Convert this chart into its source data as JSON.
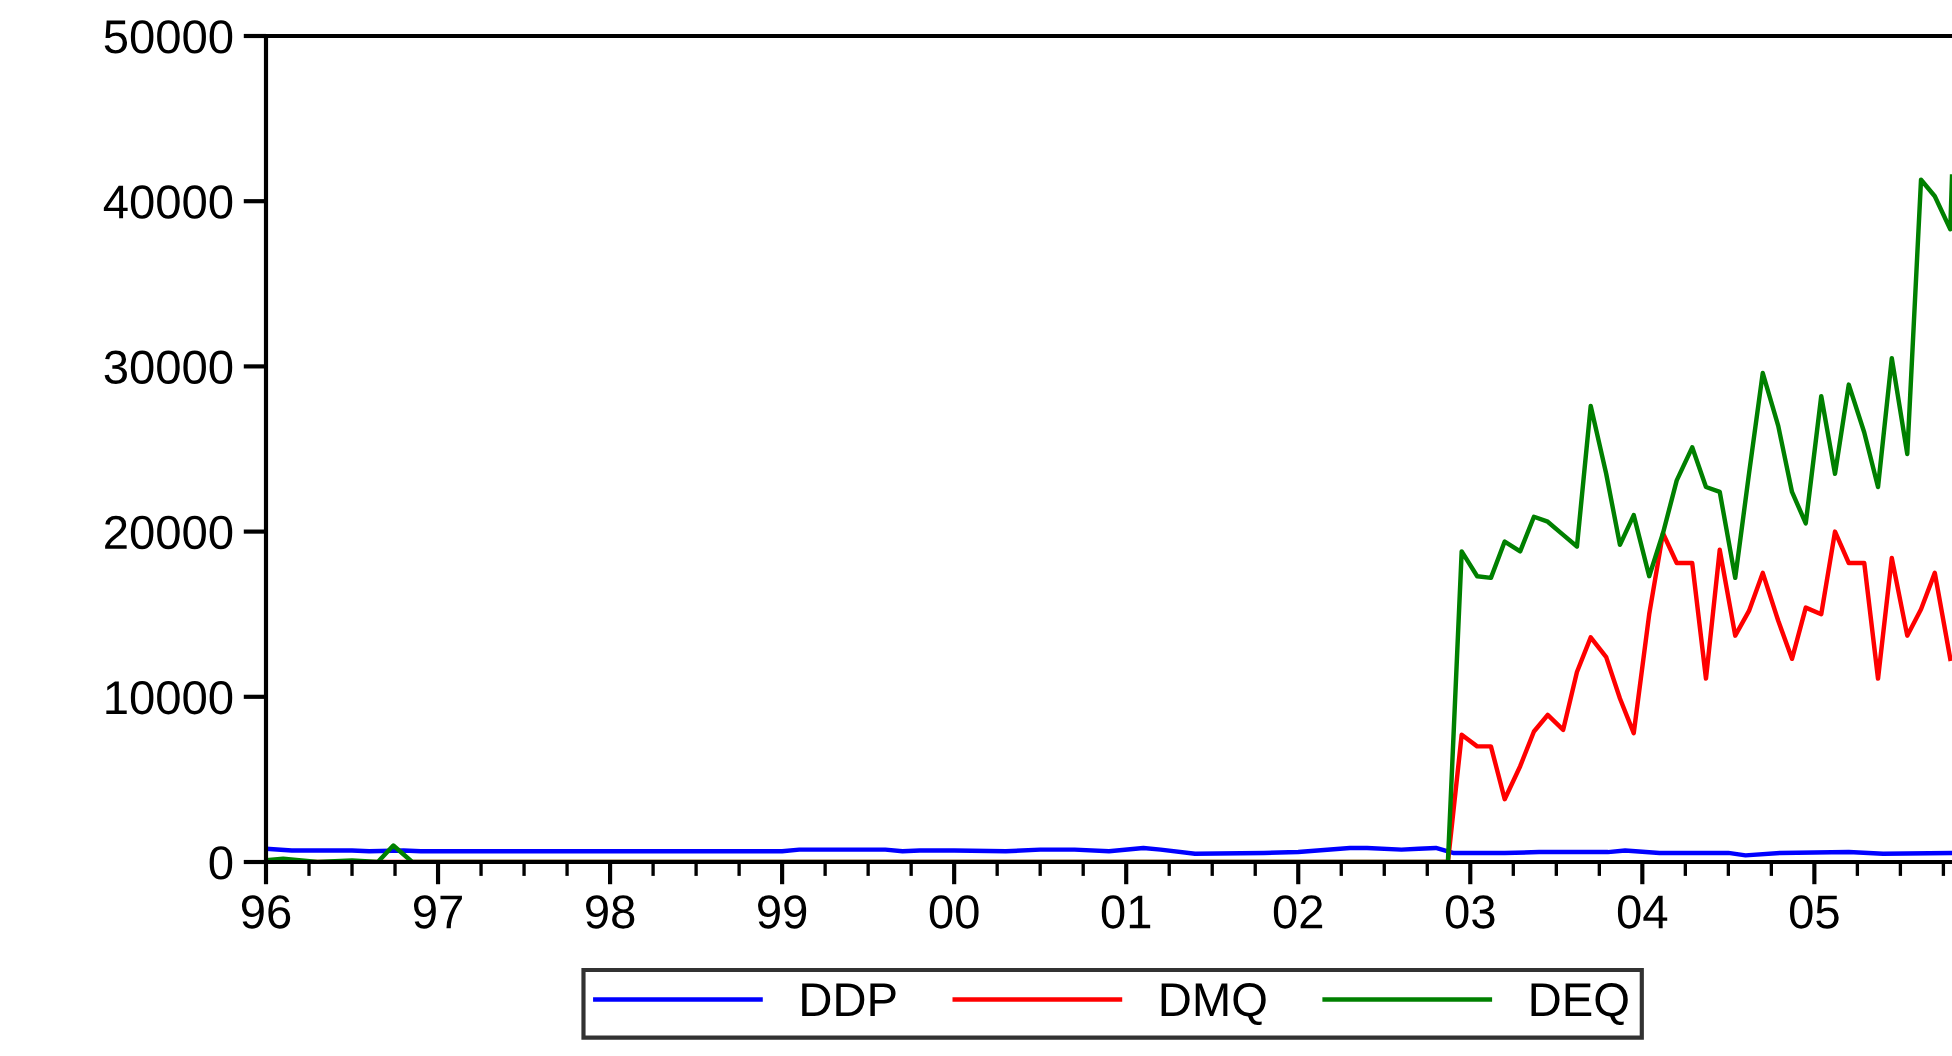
{
  "chart_data": {
    "type": "line",
    "xlim": [
      1996.0,
      2005.8
    ],
    "ylim": [
      0,
      50000
    ],
    "yticks": [
      0,
      10000,
      20000,
      30000,
      40000,
      50000
    ],
    "xticks": [
      {
        "value": 1996,
        "label": "96"
      },
      {
        "value": 1996.25,
        "label": null
      },
      {
        "value": 1996.5,
        "label": null
      },
      {
        "value": 1996.75,
        "label": null
      },
      {
        "value": 1997,
        "label": "97"
      },
      {
        "value": 1997.25,
        "label": null
      },
      {
        "value": 1997.5,
        "label": null
      },
      {
        "value": 1997.75,
        "label": null
      },
      {
        "value": 1998,
        "label": "98"
      },
      {
        "value": 1998.25,
        "label": null
      },
      {
        "value": 1998.5,
        "label": null
      },
      {
        "value": 1998.75,
        "label": null
      },
      {
        "value": 1999,
        "label": "99"
      },
      {
        "value": 1999.25,
        "label": null
      },
      {
        "value": 1999.5,
        "label": null
      },
      {
        "value": 1999.75,
        "label": null
      },
      {
        "value": 2000,
        "label": "00"
      },
      {
        "value": 2000.25,
        "label": null
      },
      {
        "value": 2000.5,
        "label": null
      },
      {
        "value": 2000.75,
        "label": null
      },
      {
        "value": 2001,
        "label": "01"
      },
      {
        "value": 2001.25,
        "label": null
      },
      {
        "value": 2001.5,
        "label": null
      },
      {
        "value": 2001.75,
        "label": null
      },
      {
        "value": 2002,
        "label": "02"
      },
      {
        "value": 2002.25,
        "label": null
      },
      {
        "value": 2002.5,
        "label": null
      },
      {
        "value": 2002.75,
        "label": null
      },
      {
        "value": 2003,
        "label": "03"
      },
      {
        "value": 2003.25,
        "label": null
      },
      {
        "value": 2003.5,
        "label": null
      },
      {
        "value": 2003.75,
        "label": null
      },
      {
        "value": 2004,
        "label": "04"
      },
      {
        "value": 2004.25,
        "label": null
      },
      {
        "value": 2004.5,
        "label": null
      },
      {
        "value": 2004.75,
        "label": null
      },
      {
        "value": 2005,
        "label": "05"
      },
      {
        "value": 2005.25,
        "label": null
      },
      {
        "value": 2005.5,
        "label": null
      },
      {
        "value": 2005.75,
        "label": null
      }
    ],
    "legend": "bottom",
    "grid": false,
    "marker": "none",
    "line_style": "solid",
    "series": [
      {
        "name": "DDP",
        "color": "#0000ff",
        "x": [
          1996.0,
          1996.15,
          1996.5,
          1996.6,
          1996.8,
          1996.9,
          1997.0,
          1999.0,
          1999.1,
          1999.6,
          1999.7,
          1999.8,
          2000.0,
          2000.3,
          2000.5,
          2000.7,
          2000.9,
          2001.1,
          2001.2,
          2001.4,
          2001.8,
          2002.0,
          2002.3,
          2002.4,
          2002.6,
          2002.7,
          2002.8,
          2002.9,
          2003.2,
          2003.4,
          2003.8,
          2003.9,
          2004.1,
          2004.5,
          2004.6,
          2004.8,
          2005.2,
          2005.4,
          2005.8
        ],
        "values": [
          800,
          700,
          700,
          650,
          700,
          650,
          650,
          650,
          750,
          750,
          650,
          700,
          700,
          650,
          750,
          750,
          650,
          850,
          750,
          500,
          550,
          600,
          850,
          850,
          750,
          800,
          850,
          550,
          550,
          600,
          600,
          700,
          550,
          550,
          400,
          550,
          600,
          500,
          550
        ]
      },
      {
        "name": "DMQ",
        "color": "#ff0000",
        "x": [
          1996.0,
          2002.87,
          2002.95,
          2003.04,
          2003.12,
          2003.2,
          2003.29,
          2003.37,
          2003.45,
          2003.54,
          2003.62,
          2003.7,
          2003.79,
          2003.87,
          2003.95,
          2004.04,
          2004.12,
          2004.2,
          2004.29,
          2004.37,
          2004.45,
          2004.54,
          2004.62,
          2004.7,
          2004.79,
          2004.87,
          2004.95,
          2005.04,
          2005.12,
          2005.2,
          2005.29,
          2005.37,
          2005.45,
          2005.54,
          2005.62,
          2005.7,
          2005.79
        ],
        "values": [
          0,
          0,
          7700,
          7000,
          7000,
          3800,
          5800,
          7900,
          8900,
          8000,
          11500,
          13600,
          12400,
          9900,
          7800,
          15000,
          19900,
          18100,
          18100,
          11100,
          18900,
          13700,
          15200,
          17500,
          14600,
          12300,
          15400,
          15000,
          20000,
          18100,
          18100,
          11100,
          18400,
          13700,
          15300,
          17500,
          12300
        ]
      },
      {
        "name": "DEQ",
        "color": "#008000",
        "x": [
          1996.0,
          1996.1,
          1996.3,
          1996.5,
          1996.65,
          1996.74,
          1996.85,
          2002.87,
          2002.95,
          2003.04,
          2003.12,
          2003.2,
          2003.29,
          2003.37,
          2003.45,
          2003.54,
          2003.62,
          2003.7,
          2003.79,
          2003.87,
          2003.95,
          2004.04,
          2004.12,
          2004.2,
          2004.29,
          2004.37,
          2004.45,
          2004.54,
          2004.62,
          2004.7,
          2004.79,
          2004.87,
          2004.95,
          2005.04,
          2005.12,
          2005.2,
          2005.29,
          2005.37,
          2005.45,
          2005.54,
          2005.62,
          2005.7,
          2005.79,
          2005.8
        ],
        "values": [
          100,
          200,
          0,
          100,
          0,
          1000,
          0,
          0,
          18800,
          17300,
          17200,
          19400,
          18800,
          20900,
          20600,
          19800,
          19100,
          27600,
          23500,
          19200,
          21000,
          17300,
          19900,
          23100,
          25100,
          22700,
          22400,
          17200,
          23500,
          29600,
          26400,
          22400,
          20500,
          28200,
          23500,
          28900,
          26000,
          22700,
          30500,
          24700,
          41300,
          40300,
          38300,
          41500
        ]
      }
    ]
  }
}
